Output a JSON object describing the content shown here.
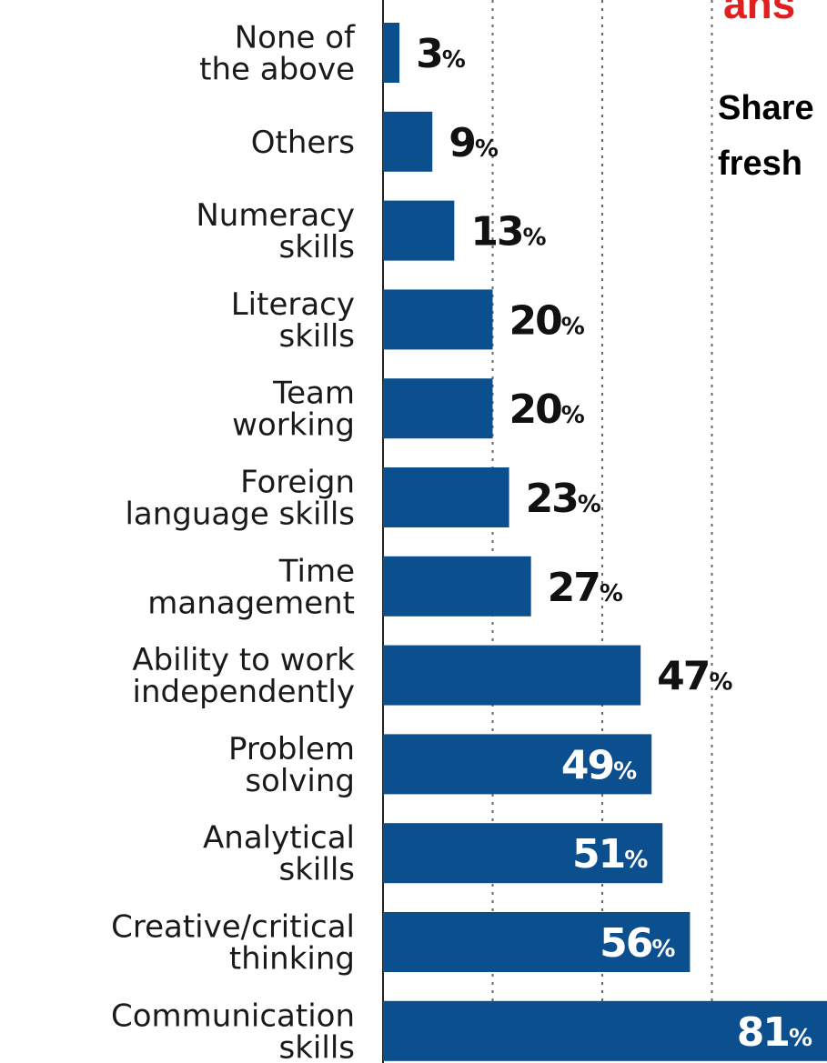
{
  "colors": {
    "bar": "#0b4f8f",
    "label": "#1a1a1a",
    "inside_text": "#ffffff",
    "outside_text": "#111111",
    "accent_red": "#e02020"
  },
  "side_text": {
    "red_fragment": "ans",
    "line1": "Share",
    "line2": "fresh"
  },
  "chart_data": {
    "type": "bar",
    "orientation": "horizontal",
    "categories": [
      [
        "None of",
        "the above"
      ],
      [
        "Others"
      ],
      [
        "Numeracy",
        "skills"
      ],
      [
        "Literacy",
        "skills"
      ],
      [
        "Team",
        "working"
      ],
      [
        "Foreign",
        "language skills"
      ],
      [
        "Time",
        "management"
      ],
      [
        "Ability to work",
        "independently"
      ],
      [
        "Problem",
        "solving"
      ],
      [
        "Analytical",
        "skills"
      ],
      [
        "Creative/critical",
        "thinking"
      ],
      [
        "Communication",
        "skills"
      ]
    ],
    "values": [
      3,
      9,
      13,
      20,
      20,
      23,
      27,
      47,
      49,
      51,
      56,
      81
    ],
    "value_suffix": "%",
    "xlim": [
      0,
      81
    ],
    "grid": "vertical dashed",
    "title": "",
    "xlabel": "",
    "ylabel": ""
  }
}
